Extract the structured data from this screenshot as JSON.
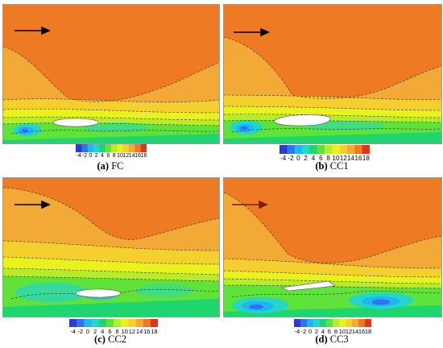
{
  "colorbar": {
    "ticks": [
      "-4",
      "-2",
      "0",
      "2",
      "4",
      "6",
      "8",
      "10",
      "12",
      "14",
      "16",
      "18"
    ],
    "colors": [
      "#2e3bd1",
      "#2f74ee",
      "#1fb5f2",
      "#22d7c8",
      "#1fd56f",
      "#5fe23a",
      "#b6ec29",
      "#e9f21e",
      "#f4cf2d",
      "#f2a936",
      "#ef7a22",
      "#e0351c"
    ]
  },
  "panels": [
    {
      "id": "a",
      "letter": "(a)",
      "name": "FC"
    },
    {
      "id": "b",
      "letter": "(b)",
      "name": "CC1"
    },
    {
      "id": "c",
      "letter": "(c)",
      "name": "CC2"
    },
    {
      "id": "d",
      "letter": "(d)",
      "name": "CC3"
    }
  ],
  "flow_direction": "left-to-right-arrow-icon"
}
